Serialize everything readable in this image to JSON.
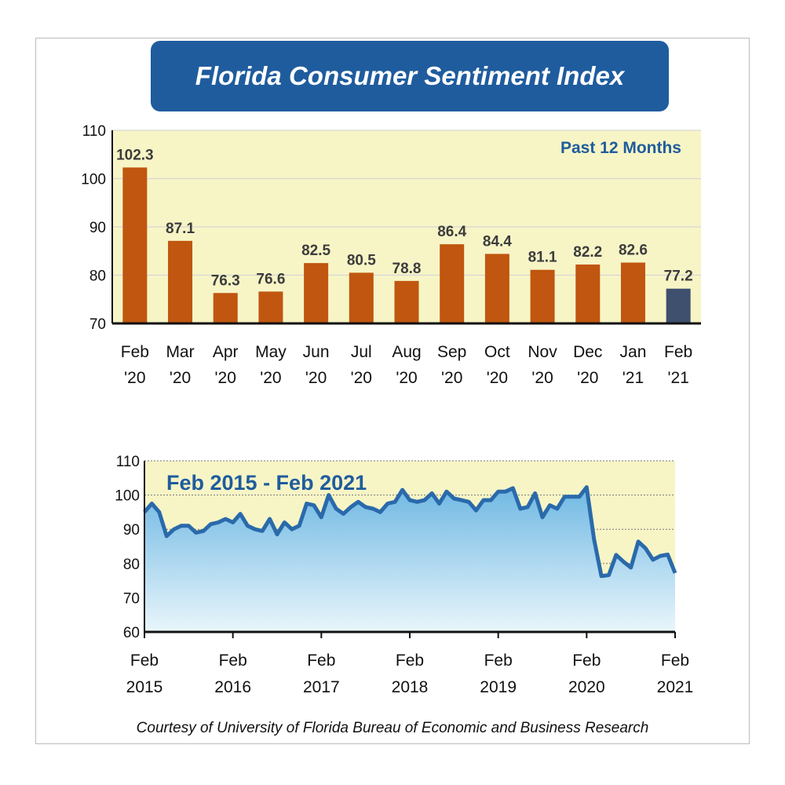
{
  "title": "Florida Consumer Sentiment Index",
  "credit": "Courtesy of University of Florida Bureau of Economic and Business Research",
  "colors": {
    "banner": "#1f5c9e",
    "bar": "#c0560f",
    "bar_latest": "#3f4f6e",
    "plot_bg": "#f7f5c6",
    "line": "#2a6aab",
    "fill_top": "#6fb8e3",
    "fill_bottom": "#e9f6fb"
  },
  "chart_data": [
    {
      "type": "bar",
      "subtitle": "Past 12 Months",
      "categories": [
        [
          "Feb",
          "'20"
        ],
        [
          "Mar",
          "'20"
        ],
        [
          "Apr",
          "'20"
        ],
        [
          "May",
          "'20"
        ],
        [
          "Jun",
          "'20"
        ],
        [
          "Jul",
          "'20"
        ],
        [
          "Aug",
          "'20"
        ],
        [
          "Sep",
          "'20"
        ],
        [
          "Oct",
          "'20"
        ],
        [
          "Nov",
          "'20"
        ],
        [
          "Dec",
          "'20"
        ],
        [
          "Jan",
          "'21"
        ],
        [
          "Feb",
          "'21"
        ]
      ],
      "values": [
        102.3,
        87.1,
        76.3,
        76.6,
        82.5,
        80.5,
        78.8,
        86.4,
        84.4,
        81.1,
        82.2,
        82.6,
        77.2
      ],
      "value_labels": [
        "102.3",
        "87.1",
        "76.3",
        "76.6",
        "82.5",
        "80.5",
        "78.8",
        "86.4",
        "84.4",
        "81.1",
        "82.2",
        "82.6",
        "77.2"
      ],
      "ylim": [
        70,
        110
      ],
      "yticks": [
        70,
        80,
        90,
        100,
        110
      ],
      "grid": true
    },
    {
      "type": "area",
      "subtitle": "Feb 2015 - Feb 2021",
      "xticks": [
        [
          "Feb",
          "2015"
        ],
        [
          "Feb",
          "2016"
        ],
        [
          "Feb",
          "2017"
        ],
        [
          "Feb",
          "2018"
        ],
        [
          "Feb",
          "2019"
        ],
        [
          "Feb",
          "2020"
        ],
        [
          "Feb",
          "2021"
        ]
      ],
      "ylim": [
        60,
        110
      ],
      "yticks": [
        60,
        70,
        80,
        90,
        100,
        110
      ],
      "x_start": "2015-02",
      "x_end": "2021-02",
      "grid": true,
      "values": [
        95,
        97.5,
        95,
        88,
        90,
        91,
        91,
        89,
        89.5,
        91.5,
        92,
        93,
        92,
        94.5,
        91,
        90,
        89.5,
        93,
        88.5,
        92,
        90,
        91,
        97.5,
        97,
        93.5,
        100,
        96,
        94.5,
        96.5,
        98,
        96.5,
        96,
        95,
        97.5,
        98,
        101.5,
        98.5,
        98,
        98.5,
        100.5,
        97.5,
        101,
        99,
        98.5,
        98,
        95.5,
        98.5,
        98.5,
        101,
        101,
        102,
        96,
        96.5,
        100.5,
        93.5,
        97,
        96,
        99.5,
        99.5,
        99.5,
        102.3,
        87.1,
        76.3,
        76.6,
        82.5,
        80.5,
        78.8,
        86.4,
        84.4,
        81.1,
        82.2,
        82.6,
        77.2
      ]
    }
  ]
}
